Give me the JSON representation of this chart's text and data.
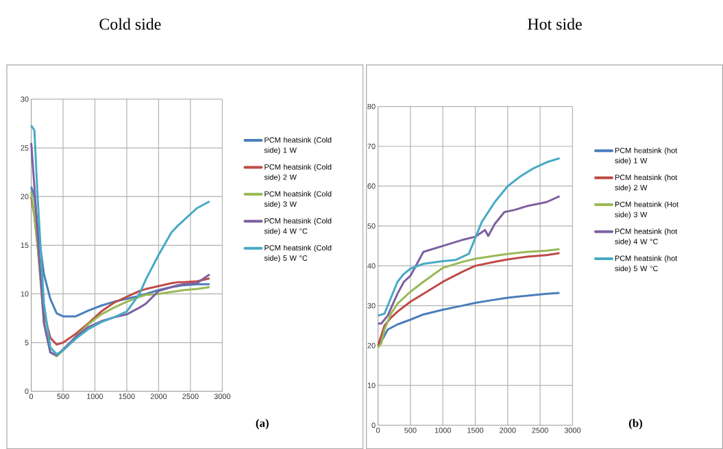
{
  "chart_data": [
    {
      "type": "line",
      "title": "Cold side",
      "annotations": [
        "**(a)**"
      ],
      "grid": true,
      "legend": "right",
      "marker": "none",
      "line_style": "solid",
      "xlim": [
        0,
        3000
      ],
      "xticks": [
        0,
        500,
        1000,
        1500,
        2000,
        2500,
        3000
      ],
      "ylim": [
        0,
        30
      ],
      "yticks": [
        0,
        5,
        10,
        15,
        20,
        25,
        30
      ],
      "x": [
        0,
        50,
        100,
        200,
        300,
        400,
        500,
        700,
        900,
        1100,
        1300,
        1500,
        1700,
        1800,
        2000,
        2200,
        2300,
        2400,
        2600,
        2800
      ],
      "series": [
        {
          "name": "PCM heatsink (Cold side) 1 W",
          "color": "#4a7ebb",
          "values": [
            21,
            20,
            17,
            12,
            9.5,
            8,
            7.7,
            7.7,
            8.3,
            8.8,
            9.2,
            9.5,
            9.8,
            10,
            10.4,
            10.7,
            10.8,
            10.9,
            11,
            11
          ]
        },
        {
          "name": "PCM heatsink (Cold side) 2 W",
          "color": "#be4b48",
          "values": [
            20,
            18,
            15,
            8,
            5.5,
            4.8,
            5,
            5.9,
            7,
            8.2,
            9.1,
            9.7,
            10.3,
            10.5,
            10.8,
            11.1,
            11.2,
            11.2,
            11.3,
            11.6
          ]
        },
        {
          "name": "PCM heatsink (Cold side) 3 W",
          "color": "#98b954",
          "values": [
            20.5,
            18,
            15,
            7,
            4,
            3.6,
            4.2,
            5.6,
            6.9,
            7.9,
            8.6,
            9.2,
            9.7,
            9.9,
            10,
            10.2,
            10.3,
            10.4,
            10.5,
            10.7
          ]
        },
        {
          "name": "PCM heatsink (Cold side) 4 W °C",
          "color": "#7d60a0",
          "values": [
            25.5,
            21,
            16,
            7,
            4,
            3.7,
            4.3,
            5.6,
            6.6,
            7.2,
            7.6,
            7.9,
            8.6,
            9,
            10.3,
            10.7,
            10.9,
            11,
            11.1,
            12
          ]
        },
        {
          "name": "PCM heatsink (Cold side) 5 W °C",
          "color": "#46aac5",
          "values": [
            27.3,
            26.8,
            20,
            9,
            4.5,
            3.8,
            4.2,
            5.4,
            6.4,
            7.1,
            7.6,
            8.2,
            10,
            11.5,
            14,
            16.3,
            17,
            17.6,
            18.8,
            19.5
          ]
        }
      ]
    },
    {
      "type": "line",
      "title": "Hot side",
      "annotations": [
        "**(b)**"
      ],
      "grid": true,
      "legend": "right",
      "marker": "none",
      "line_style": "solid",
      "xlim": [
        0,
        3000
      ],
      "xticks": [
        0,
        500,
        1000,
        1500,
        2000,
        2500,
        3000
      ],
      "ylim": [
        0,
        80
      ],
      "yticks": [
        0,
        10,
        20,
        30,
        40,
        50,
        60,
        70,
        80
      ],
      "series": [
        {
          "name": "PCM heatsink (hot side) 1 W",
          "color": "#4a7ebb",
          "x": [
            0,
            50,
            150,
            300,
            500,
            700,
            1000,
            1300,
            1500,
            1800,
            2000,
            2300,
            2600,
            2800
          ],
          "values": [
            20.5,
            21,
            24,
            25.3,
            26.5,
            27.8,
            29,
            30,
            30.7,
            31.5,
            32,
            32.5,
            33,
            33.2
          ]
        },
        {
          "name": "PCM heatsink (hot side) 2 W",
          "color": "#be4b48",
          "x": [
            0,
            100,
            200,
            300,
            500,
            700,
            1000,
            1300,
            1500,
            1800,
            2000,
            2300,
            2600,
            2800
          ],
          "values": [
            20,
            25,
            27,
            28.5,
            31,
            33,
            36,
            38.5,
            40,
            41,
            41.6,
            42.3,
            42.7,
            43.2
          ]
        },
        {
          "name": "PCM heatsink (Hot side) 3 W",
          "color": "#98b954",
          "x": [
            0,
            50,
            100,
            200,
            300,
            500,
            700,
            1000,
            1300,
            1500,
            1800,
            2000,
            2300,
            2600,
            2800
          ],
          "values": [
            19.5,
            20.5,
            24,
            28,
            30.5,
            33.5,
            36,
            39.5,
            41,
            41.8,
            42.5,
            43,
            43.5,
            43.8,
            44.2
          ]
        },
        {
          "name": "PCM heatsink (hot side) 4 W °C",
          "color": "#7d60a0",
          "x": [
            0,
            50,
            150,
            300,
            400,
            500,
            600,
            700,
            900,
            1100,
            1300,
            1500,
            1650,
            1700,
            1800,
            1950,
            2100,
            2300,
            2600,
            2800
          ],
          "values": [
            25.5,
            25.5,
            27.5,
            33,
            36,
            37.5,
            40.5,
            43.5,
            44.5,
            45.5,
            46.5,
            47.3,
            49,
            47.5,
            50.5,
            53.5,
            54,
            55,
            56,
            57.5
          ]
        },
        {
          "name": "PCM heatsink (hot side) 5 W °C",
          "color": "#46aac5",
          "x": [
            0,
            100,
            200,
            300,
            400,
            500,
            700,
            1000,
            1200,
            1400,
            1500,
            1600,
            1800,
            2000,
            2200,
            2400,
            2600,
            2800
          ],
          "values": [
            27.5,
            28,
            32,
            36,
            38,
            39.3,
            40.5,
            41.2,
            41.5,
            43,
            47,
            51,
            56,
            60,
            62.5,
            64.5,
            66,
            67
          ]
        }
      ]
    }
  ]
}
